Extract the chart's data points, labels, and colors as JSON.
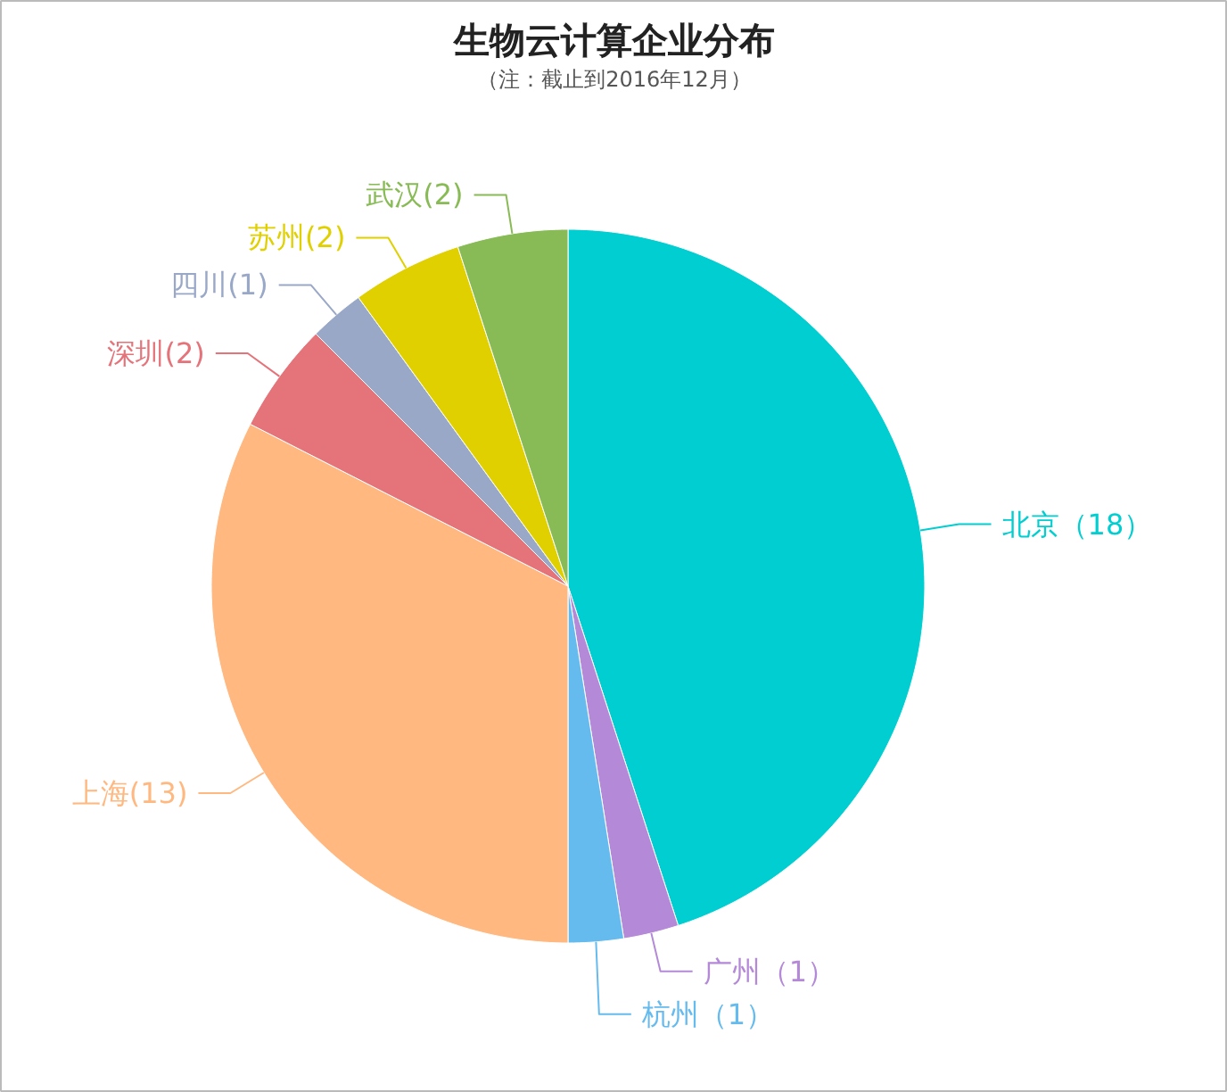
{
  "chart_data": {
    "type": "pie",
    "title": "生物云计算企业分布",
    "subtitle": "（注：截止到2016年12月）",
    "categories": [
      "北京",
      "广州",
      "杭州",
      "上海",
      "深圳",
      "四川",
      "苏州",
      "武汉"
    ],
    "values": [
      18,
      1,
      1,
      13,
      2,
      1,
      2,
      2
    ],
    "colors": [
      "#00ced1",
      "#b48ad8",
      "#66bbee",
      "#ffb980",
      "#e5737a",
      "#9aa8c8",
      "#e0d000",
      "#88bb55"
    ],
    "value_labels": [
      "（18）",
      "（1）",
      "（1）",
      "(13)",
      "(2)",
      "(1)",
      "(2)",
      "(2)"
    ]
  }
}
